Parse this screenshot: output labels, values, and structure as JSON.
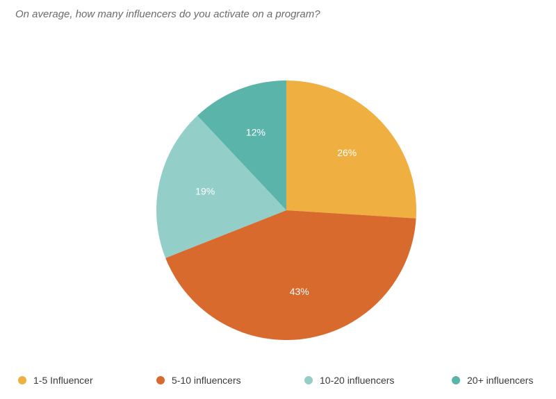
{
  "chart_data": {
    "type": "pie",
    "title": "On average, how many influencers do you activate on a program?",
    "categories": [
      "1-5 Influencer",
      "5-10 influencers",
      "10-20 influencers",
      "20+ influencers"
    ],
    "values": [
      26,
      43,
      19,
      12
    ],
    "labels": [
      "26%",
      "43%",
      "19%",
      "12%"
    ],
    "colors": [
      "#F0B041",
      "#D86A2E",
      "#93CFC8",
      "#5BB4AA"
    ],
    "legend_position": "bottom",
    "start_angle": "12 o'clock",
    "direction": "clockwise"
  }
}
